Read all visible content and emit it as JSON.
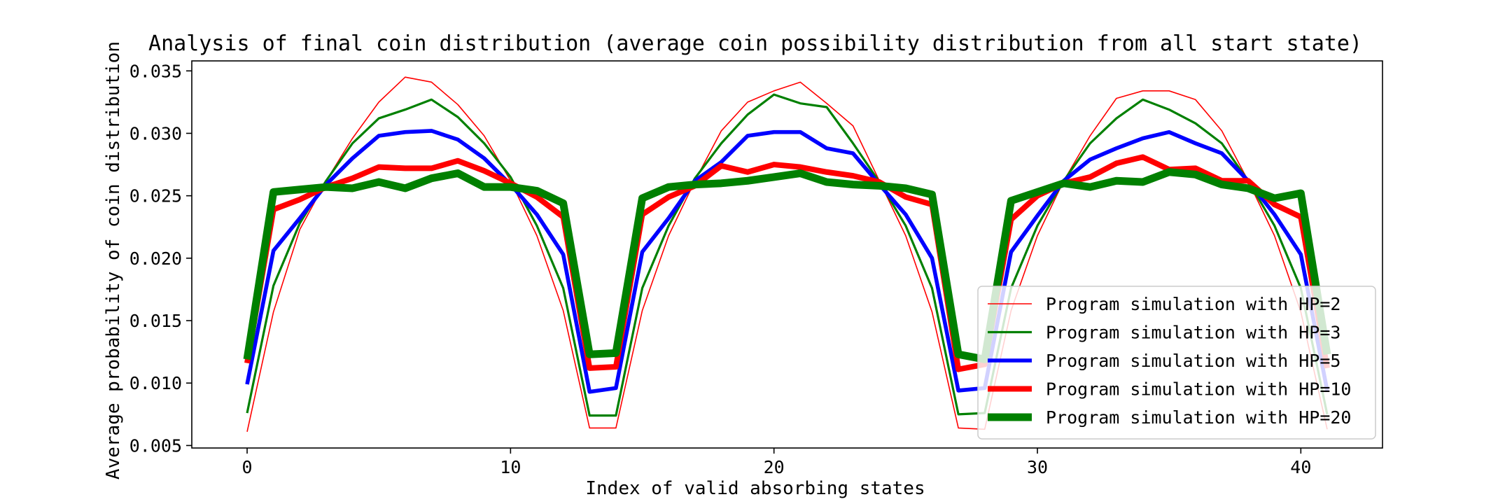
{
  "chart_data": {
    "type": "line",
    "title": "Analysis of final coin distribution (average coin possibility distribution from all start state)",
    "xlabel": "Index of valid absorbing states",
    "ylabel": "Average probability of coin distribution",
    "xlim": [
      -2.1,
      43.1
    ],
    "ylim": [
      0.0048,
      0.0358
    ],
    "xticks": [
      0,
      10,
      20,
      30,
      40
    ],
    "yticks": [
      0.005,
      0.01,
      0.015,
      0.02,
      0.025,
      0.03,
      0.035
    ],
    "xtick_labels": [
      "0",
      "10",
      "20",
      "30",
      "40"
    ],
    "ytick_labels": [
      "0.005",
      "0.010",
      "0.015",
      "0.020",
      "0.025",
      "0.030",
      "0.035"
    ],
    "grid": false,
    "legend_position": "lower-right",
    "x": [
      0,
      1,
      2,
      3,
      4,
      5,
      6,
      7,
      8,
      9,
      10,
      11,
      12,
      13,
      14,
      15,
      16,
      17,
      18,
      19,
      20,
      21,
      22,
      23,
      24,
      25,
      26,
      27,
      28,
      29,
      30,
      31,
      32,
      33,
      34,
      35,
      36,
      37,
      38,
      39,
      40,
      41
    ],
    "series": [
      {
        "name": "Program simulation with HP=2",
        "color": "#ff0000",
        "weight": 1,
        "values": [
          0.0061,
          0.0157,
          0.0223,
          0.0262,
          0.0296,
          0.0325,
          0.0345,
          0.0341,
          0.0323,
          0.0298,
          0.0262,
          0.0218,
          0.0158,
          0.0064,
          0.0064,
          0.0158,
          0.0218,
          0.0262,
          0.0302,
          0.0325,
          0.0334,
          0.0341,
          0.0324,
          0.0306,
          0.0262,
          0.0218,
          0.0157,
          0.0064,
          0.0063,
          0.0158,
          0.0218,
          0.0262,
          0.0298,
          0.0328,
          0.0334,
          0.0334,
          0.0327,
          0.0302,
          0.0262,
          0.0218,
          0.0157,
          0.0063
        ]
      },
      {
        "name": "Program simulation with HP=3",
        "color": "#008000",
        "weight": 2,
        "values": [
          0.0076,
          0.0178,
          0.0228,
          0.0262,
          0.0292,
          0.0312,
          0.0319,
          0.0327,
          0.0313,
          0.0292,
          0.0265,
          0.0226,
          0.0176,
          0.0074,
          0.0074,
          0.0176,
          0.0226,
          0.0264,
          0.0292,
          0.0315,
          0.0331,
          0.0324,
          0.0321,
          0.0292,
          0.0261,
          0.0226,
          0.0176,
          0.0075,
          0.0076,
          0.0176,
          0.0226,
          0.0262,
          0.0292,
          0.0312,
          0.0327,
          0.0319,
          0.0308,
          0.0292,
          0.0262,
          0.0226,
          0.0176,
          0.0075
        ]
      },
      {
        "name": "Program simulation with HP=5",
        "color": "#0000ff",
        "weight": 3,
        "values": [
          0.0099,
          0.0206,
          0.0232,
          0.0259,
          0.028,
          0.0298,
          0.0301,
          0.0302,
          0.0295,
          0.028,
          0.0259,
          0.0235,
          0.0203,
          0.0093,
          0.0096,
          0.0205,
          0.0232,
          0.0262,
          0.0277,
          0.0298,
          0.0301,
          0.0301,
          0.0288,
          0.0284,
          0.0259,
          0.0235,
          0.02,
          0.0094,
          0.0096,
          0.0205,
          0.0234,
          0.0262,
          0.0279,
          0.0288,
          0.0296,
          0.0301,
          0.0292,
          0.0284,
          0.0262,
          0.0235,
          0.0203,
          0.0094
        ]
      },
      {
        "name": "Program simulation with HP=10",
        "color": "#ff0000",
        "weight": 4,
        "values": [
          0.0116,
          0.0239,
          0.0247,
          0.0257,
          0.0264,
          0.0273,
          0.0272,
          0.0272,
          0.0278,
          0.027,
          0.026,
          0.0249,
          0.0233,
          0.0112,
          0.0113,
          0.0235,
          0.0249,
          0.0258,
          0.0274,
          0.0269,
          0.0275,
          0.0273,
          0.0269,
          0.0266,
          0.0261,
          0.0249,
          0.0243,
          0.0111,
          0.0115,
          0.0231,
          0.025,
          0.026,
          0.0265,
          0.0276,
          0.0281,
          0.0271,
          0.0272,
          0.0262,
          0.0262,
          0.0243,
          0.0233,
          0.0112
        ]
      },
      {
        "name": "Program simulation with HP=20",
        "color": "#008000",
        "weight": 5,
        "values": [
          0.0119,
          0.0253,
          0.0255,
          0.0257,
          0.0256,
          0.0261,
          0.0256,
          0.0264,
          0.0268,
          0.0257,
          0.0257,
          0.0254,
          0.0244,
          0.0123,
          0.0124,
          0.0248,
          0.0257,
          0.0259,
          0.026,
          0.0262,
          0.0265,
          0.0268,
          0.0261,
          0.0259,
          0.0258,
          0.0256,
          0.0251,
          0.0123,
          0.0119,
          0.0246,
          0.0253,
          0.026,
          0.0257,
          0.0262,
          0.0261,
          0.0269,
          0.0267,
          0.0259,
          0.0256,
          0.0248,
          0.0252,
          0.0123
        ]
      }
    ]
  }
}
